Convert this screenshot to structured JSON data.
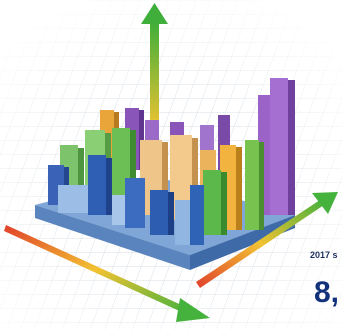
{
  "caption": {
    "year_text": "2017 s",
    "number_text": "8,"
  }
}
